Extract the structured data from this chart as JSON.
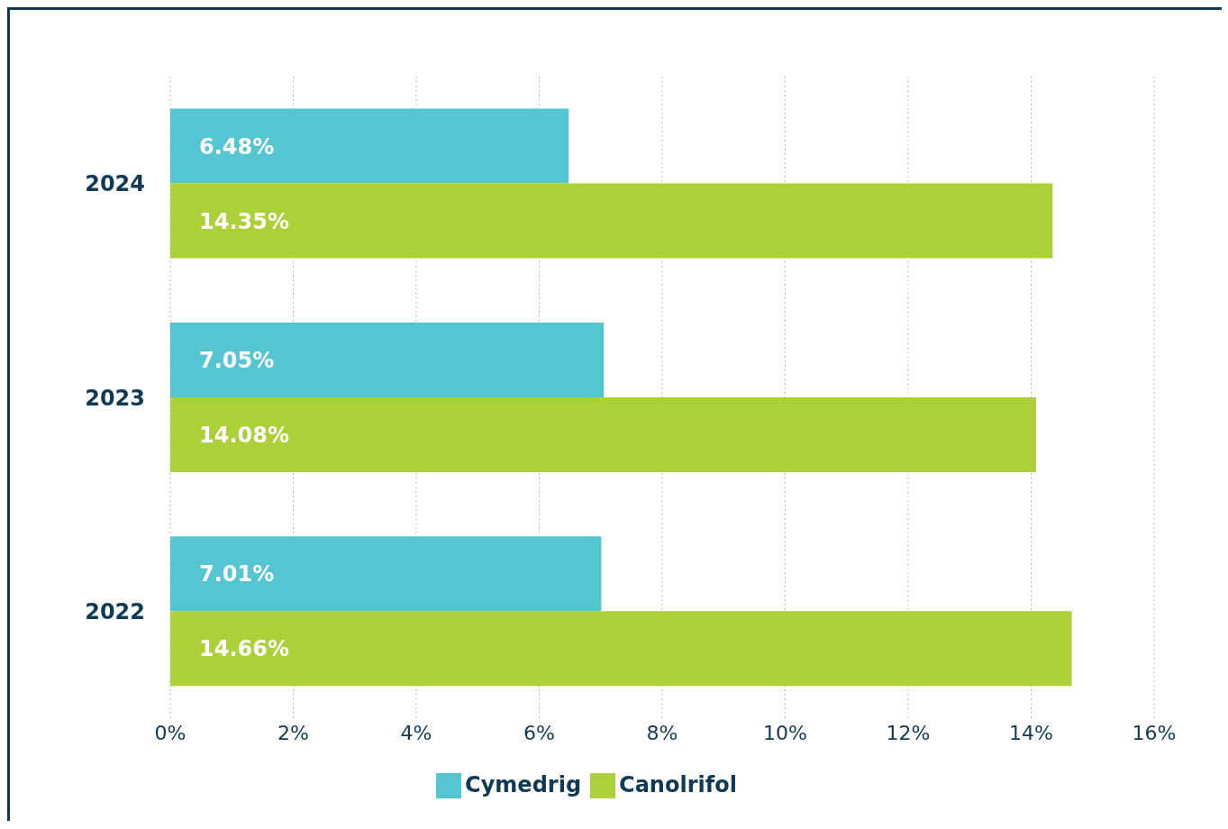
{
  "chart_data": {
    "type": "bar",
    "orientation": "horizontal",
    "categories": [
      "2024",
      "2023",
      "2022"
    ],
    "series": [
      {
        "name": "Cymedrig",
        "color": "#55c5d1",
        "values": [
          6.48,
          7.05,
          7.01
        ],
        "value_labels": [
          "6.48%",
          "7.05%",
          "7.01%"
        ]
      },
      {
        "name": "Canolrifol",
        "color": "#acd037",
        "values": [
          14.35,
          14.08,
          14.66
        ],
        "value_labels": [
          "14.35%",
          "14.08%",
          "14.66%"
        ]
      }
    ],
    "xlim": [
      0,
      16
    ],
    "xticks": [
      {
        "value": 0,
        "label": "0%"
      },
      {
        "value": 2,
        "label": "2%"
      },
      {
        "value": 4,
        "label": "4%"
      },
      {
        "value": 6,
        "label": "6%"
      },
      {
        "value": 8,
        "label": "8%"
      },
      {
        "value": 10,
        "label": "10%"
      },
      {
        "value": 12,
        "label": "12%"
      },
      {
        "value": 14,
        "label": "14%"
      },
      {
        "value": 16,
        "label": "16%"
      }
    ],
    "grid": "x",
    "legend": "bottom"
  }
}
